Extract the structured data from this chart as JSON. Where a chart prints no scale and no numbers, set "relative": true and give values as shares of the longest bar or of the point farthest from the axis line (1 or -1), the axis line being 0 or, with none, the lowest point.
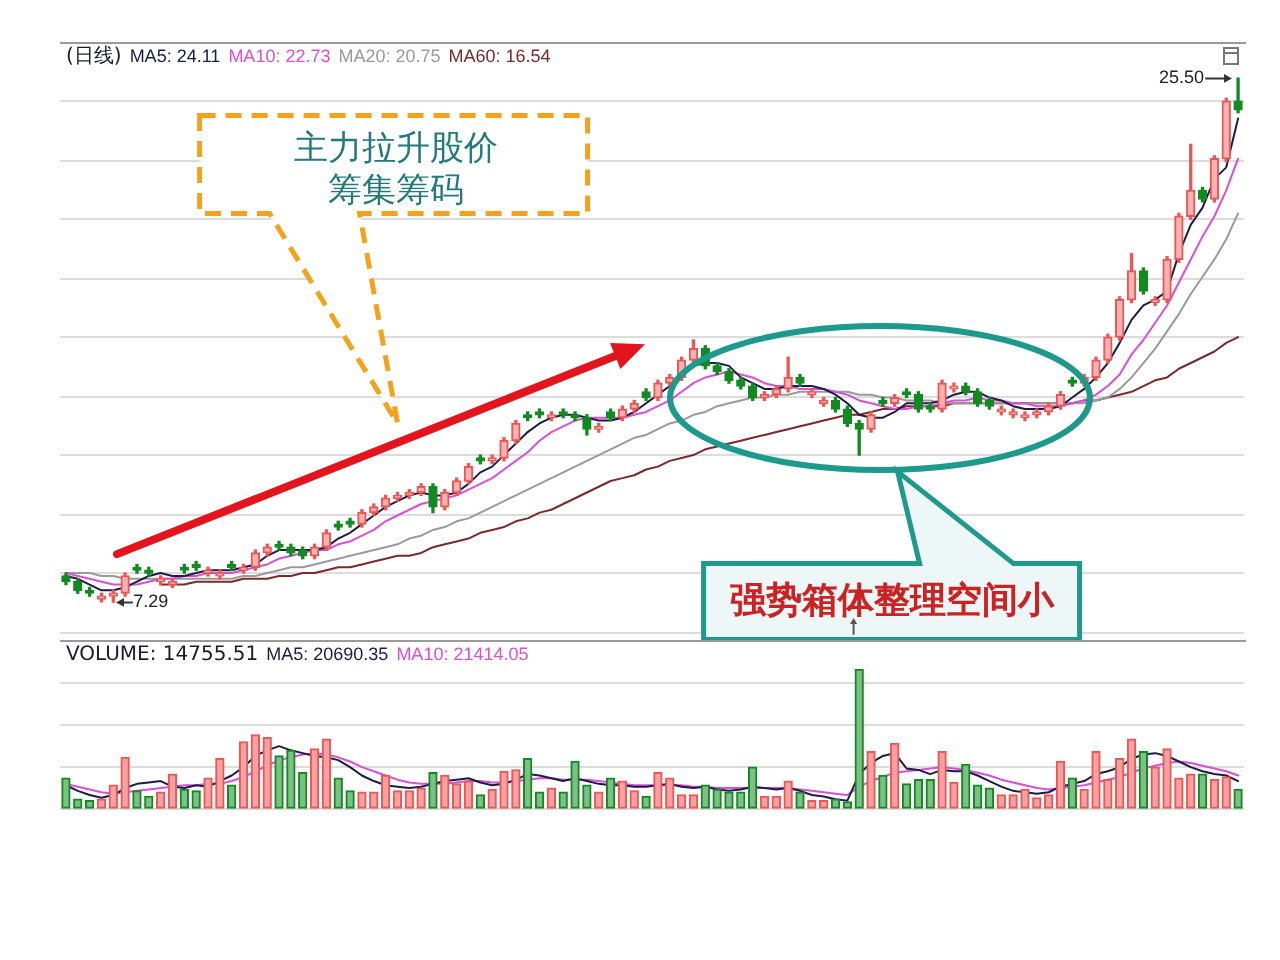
{
  "chart_data": [
    {
      "type": "candlestick",
      "title": "(日线)",
      "legend": "top left",
      "grid": "y",
      "tick_labels": false,
      "categories": [
        null,
        null,
        null,
        null,
        null,
        null,
        null,
        null,
        null,
        null,
        null,
        null,
        null,
        null,
        null,
        null,
        null,
        null,
        null,
        null,
        null,
        null,
        null,
        null,
        null,
        null,
        null,
        null,
        null,
        null,
        null,
        null,
        null,
        null,
        null,
        null,
        null,
        null,
        null,
        null,
        null,
        null,
        null,
        null,
        null,
        null,
        null,
        null,
        null,
        null,
        null,
        null,
        null,
        null,
        null,
        null,
        null,
        null,
        null,
        null,
        null,
        null,
        null,
        null,
        null,
        null,
        null,
        null,
        null,
        null,
        null,
        null,
        null,
        null,
        null,
        null,
        null,
        null,
        null,
        null,
        null,
        null,
        null,
        null,
        null,
        null,
        null,
        null,
        null,
        null,
        null,
        null,
        null,
        null,
        null,
        null,
        null,
        null,
        null,
        null
      ],
      "ohlc": [
        [
          8.2,
          8.3,
          7.9,
          8.0
        ],
        [
          8.0,
          8.1,
          7.6,
          7.7
        ],
        [
          7.7,
          7.8,
          7.5,
          7.6
        ],
        [
          7.4,
          7.6,
          7.3,
          7.5
        ],
        [
          7.5,
          7.7,
          7.29,
          7.6
        ],
        [
          7.6,
          8.3,
          7.5,
          8.2
        ],
        [
          8.5,
          8.6,
          8.3,
          8.4
        ],
        [
          8.4,
          8.5,
          8.2,
          8.3
        ],
        [
          8.0,
          8.2,
          7.9,
          8.1
        ],
        [
          7.9,
          8.1,
          7.8,
          8.0
        ],
        [
          8.5,
          8.6,
          8.3,
          8.4
        ],
        [
          8.6,
          8.7,
          8.4,
          8.5
        ],
        [
          8.3,
          8.5,
          8.2,
          8.4
        ],
        [
          8.2,
          8.4,
          8.1,
          8.3
        ],
        [
          8.6,
          8.7,
          8.4,
          8.5
        ],
        [
          8.4,
          8.6,
          8.3,
          8.5
        ],
        [
          8.5,
          9.1,
          8.4,
          9.0
        ],
        [
          9.0,
          9.3,
          8.9,
          9.2
        ],
        [
          9.3,
          9.4,
          9.1,
          9.2
        ],
        [
          9.2,
          9.3,
          8.9,
          9.0
        ],
        [
          9.1,
          9.2,
          8.8,
          8.9
        ],
        [
          8.9,
          9.3,
          8.8,
          9.2
        ],
        [
          9.2,
          9.8,
          9.1,
          9.7
        ],
        [
          10.0,
          10.1,
          9.8,
          9.9
        ],
        [
          10.1,
          10.2,
          9.9,
          10.0
        ],
        [
          10.0,
          10.5,
          9.9,
          10.4
        ],
        [
          10.4,
          10.7,
          10.3,
          10.6
        ],
        [
          10.6,
          11.0,
          10.5,
          10.9
        ],
        [
          10.9,
          11.1,
          10.8,
          11.0
        ],
        [
          11.0,
          11.2,
          10.9,
          11.1
        ],
        [
          11.1,
          11.4,
          11.0,
          11.3
        ],
        [
          11.3,
          11.4,
          10.4,
          10.6
        ],
        [
          10.6,
          11.2,
          10.5,
          11.1
        ],
        [
          11.1,
          11.6,
          11.0,
          11.5
        ],
        [
          11.5,
          12.1,
          11.4,
          12.0
        ],
        [
          12.3,
          12.4,
          12.1,
          12.2
        ],
        [
          12.2,
          12.4,
          12.1,
          12.3
        ],
        [
          12.3,
          13.0,
          12.2,
          12.9
        ],
        [
          12.9,
          13.6,
          12.8,
          13.5
        ],
        [
          13.8,
          13.9,
          13.6,
          13.7
        ],
        [
          13.9,
          14.0,
          13.7,
          13.8
        ],
        [
          13.7,
          13.9,
          13.6,
          13.8
        ],
        [
          13.9,
          14.0,
          13.7,
          13.8
        ],
        [
          13.8,
          13.9,
          13.6,
          13.7
        ],
        [
          13.7,
          13.8,
          13.1,
          13.3
        ],
        [
          13.3,
          13.5,
          13.2,
          13.4
        ],
        [
          13.9,
          14.0,
          13.6,
          13.7
        ],
        [
          13.7,
          14.1,
          13.6,
          14.0
        ],
        [
          14.0,
          14.3,
          13.9,
          14.2
        ],
        [
          14.6,
          14.7,
          14.3,
          14.4
        ],
        [
          14.4,
          15.0,
          14.3,
          14.9
        ],
        [
          14.9,
          15.2,
          14.8,
          15.1
        ],
        [
          15.1,
          15.8,
          15.0,
          15.7
        ],
        [
          15.7,
          16.4,
          15.6,
          16.1
        ],
        [
          16.1,
          16.2,
          15.4,
          15.5
        ],
        [
          15.5,
          15.6,
          15.2,
          15.3
        ],
        [
          15.3,
          15.4,
          14.9,
          15.0
        ],
        [
          15.0,
          15.1,
          14.7,
          14.8
        ],
        [
          14.8,
          14.9,
          14.3,
          14.4
        ],
        [
          14.4,
          14.6,
          14.3,
          14.5
        ],
        [
          14.5,
          14.8,
          14.4,
          14.7
        ],
        [
          14.7,
          15.8,
          14.6,
          15.1
        ],
        [
          15.1,
          15.2,
          14.8,
          14.9
        ],
        [
          14.5,
          14.7,
          14.4,
          14.6
        ],
        [
          14.2,
          14.4,
          14.1,
          14.3
        ],
        [
          14.3,
          14.4,
          13.9,
          14.0
        ],
        [
          14.0,
          14.1,
          13.4,
          13.5
        ],
        [
          13.5,
          13.6,
          12.4,
          13.3
        ],
        [
          13.3,
          13.9,
          13.2,
          13.8
        ],
        [
          14.3,
          14.4,
          14.1,
          14.2
        ],
        [
          14.2,
          14.5,
          14.1,
          14.4
        ],
        [
          14.6,
          14.7,
          14.4,
          14.5
        ],
        [
          14.5,
          14.6,
          13.9,
          14.0
        ],
        [
          14.1,
          14.2,
          13.9,
          14.0
        ],
        [
          14.0,
          15.0,
          13.9,
          14.9
        ],
        [
          14.7,
          14.9,
          14.6,
          14.8
        ],
        [
          14.8,
          14.9,
          14.5,
          14.6
        ],
        [
          14.6,
          14.7,
          14.1,
          14.2
        ],
        [
          14.3,
          14.4,
          14.0,
          14.1
        ],
        [
          13.9,
          14.1,
          13.8,
          14.0
        ],
        [
          13.8,
          14.0,
          13.7,
          13.9
        ],
        [
          13.7,
          13.9,
          13.6,
          13.8
        ],
        [
          13.8,
          14.0,
          13.7,
          13.9
        ],
        [
          13.9,
          14.2,
          13.8,
          14.1
        ],
        [
          14.1,
          14.6,
          14.0,
          14.5
        ],
        [
          15.0,
          15.1,
          14.8,
          14.9
        ],
        [
          14.9,
          15.2,
          14.8,
          15.1
        ],
        [
          15.1,
          15.8,
          15.0,
          15.7
        ],
        [
          15.7,
          16.6,
          15.6,
          16.5
        ],
        [
          16.5,
          17.9,
          16.4,
          17.8
        ],
        [
          17.8,
          19.4,
          17.7,
          18.8
        ],
        [
          18.8,
          18.9,
          18.0,
          18.1
        ],
        [
          17.7,
          17.9,
          17.6,
          17.8
        ],
        [
          17.8,
          19.3,
          17.7,
          19.2
        ],
        [
          19.2,
          20.8,
          19.1,
          20.7
        ],
        [
          20.7,
          23.2,
          20.6,
          21.6
        ],
        [
          21.6,
          21.7,
          21.2,
          21.3
        ],
        [
          21.3,
          22.8,
          21.2,
          22.7
        ],
        [
          22.7,
          24.8,
          22.6,
          24.7
        ],
        [
          24.7,
          25.5,
          24.3,
          24.4
        ]
      ],
      "colors": [
        "#128a22",
        "#128a22",
        "#128a22",
        "#ee5555",
        "#ee5555",
        "#ee5555",
        "#128a22",
        "#128a22",
        "#ee5555",
        "#ee5555",
        "#128a22",
        "#128a22",
        "#ee5555",
        "#ee5555",
        "#128a22",
        "#ee5555",
        "#ee5555",
        "#ee5555",
        "#128a22",
        "#128a22",
        "#128a22",
        "#ee5555",
        "#ee5555",
        "#128a22",
        "#128a22",
        "#ee5555",
        "#ee5555",
        "#ee5555",
        "#ee5555",
        "#ee5555",
        "#ee5555",
        "#128a22",
        "#ee5555",
        "#ee5555",
        "#ee5555",
        "#128a22",
        "#ee5555",
        "#ee5555",
        "#ee5555",
        "#128a22",
        "#128a22",
        "#ee5555",
        "#128a22",
        "#128a22",
        "#128a22",
        "#ee5555",
        "#128a22",
        "#ee5555",
        "#ee5555",
        "#128a22",
        "#ee5555",
        "#ee5555",
        "#ee5555",
        "#ee5555",
        "#128a22",
        "#128a22",
        "#128a22",
        "#128a22",
        "#128a22",
        "#ee5555",
        "#ee5555",
        "#ee5555",
        "#128a22",
        "#ee5555",
        "#ee5555",
        "#128a22",
        "#128a22",
        "#128a22",
        "#ee5555",
        "#128a22",
        "#ee5555",
        "#128a22",
        "#128a22",
        "#128a22",
        "#ee5555",
        "#ee5555",
        "#128a22",
        "#128a22",
        "#128a22",
        "#ee5555",
        "#ee5555",
        "#ee5555",
        "#ee5555",
        "#ee5555",
        "#ee5555",
        "#128a22",
        "#ee5555",
        "#ee5555",
        "#ee5555",
        "#ee5555",
        "#ee5555",
        "#128a22",
        "#ee5555",
        "#ee5555",
        "#ee5555",
        "#ee5555",
        "#128a22",
        "#ee5555",
        "#ee5555",
        "#128a22"
      ],
      "series": [
        {
          "type": "line",
          "name": "MA5: 24.11",
          "color": "#1c1c44",
          "values": [
            8.2,
            8.1,
            7.9,
            7.7,
            7.7,
            7.8,
            8.0,
            8.2,
            8.3,
            8.2,
            8.2,
            8.3,
            8.4,
            8.4,
            8.4,
            8.5,
            8.6,
            8.9,
            9.1,
            9.1,
            9.1,
            9.1,
            9.2,
            9.5,
            9.7,
            10.0,
            10.3,
            10.6,
            10.8,
            11.0,
            11.1,
            11.0,
            11.0,
            11.1,
            11.4,
            11.8,
            12.0,
            12.4,
            12.8,
            13.2,
            13.5,
            13.7,
            13.8,
            13.8,
            13.7,
            13.6,
            13.6,
            13.7,
            13.9,
            14.2,
            14.5,
            14.8,
            15.1,
            15.5,
            15.6,
            15.6,
            15.5,
            15.1,
            14.9,
            14.7,
            14.7,
            14.8,
            14.8,
            14.8,
            14.7,
            14.5,
            14.2,
            13.8,
            13.7,
            13.7,
            13.9,
            14.2,
            14.2,
            14.2,
            14.3,
            14.5,
            14.6,
            14.6,
            14.4,
            14.3,
            14.1,
            14.0,
            14.0,
            14.0,
            14.1,
            14.4,
            14.7,
            15.1,
            15.6,
            16.3,
            17.1,
            17.6,
            17.8,
            18.1,
            19.4,
            20.4,
            21.0,
            22.0,
            22.4,
            24.1
          ]
        },
        {
          "type": "line",
          "name": "MA10: 22.73",
          "color": "#d84fd8",
          "values": [
            8.3,
            8.2,
            8.1,
            8.0,
            7.9,
            7.9,
            7.9,
            8.0,
            8.1,
            8.1,
            8.2,
            8.2,
            8.3,
            8.3,
            8.3,
            8.4,
            8.5,
            8.6,
            8.8,
            8.9,
            9.0,
            9.1,
            9.1,
            9.3,
            9.4,
            9.6,
            9.8,
            10.1,
            10.3,
            10.5,
            10.7,
            10.8,
            10.9,
            11.0,
            11.2,
            11.4,
            11.6,
            11.9,
            12.2,
            12.5,
            12.9,
            13.2,
            13.4,
            13.6,
            13.7,
            13.7,
            13.7,
            13.7,
            13.8,
            13.9,
            14.1,
            14.3,
            14.6,
            14.9,
            15.1,
            15.2,
            15.3,
            15.2,
            15.1,
            14.9,
            14.8,
            14.8,
            14.7,
            14.7,
            14.7,
            14.6,
            14.5,
            14.3,
            14.2,
            14.1,
            14.0,
            14.0,
            14.1,
            14.1,
            14.2,
            14.3,
            14.3,
            14.4,
            14.3,
            14.3,
            14.2,
            14.2,
            14.1,
            14.1,
            14.1,
            14.2,
            14.3,
            14.5,
            14.8,
            15.2,
            15.9,
            16.4,
            17.0,
            17.6,
            18.4,
            19.2,
            20.0,
            20.7,
            21.6,
            22.7
          ]
        },
        {
          "type": "line",
          "name": "MA20: 20.75",
          "color": "#9a9a9a",
          "values": [
            8.3,
            8.3,
            8.3,
            8.2,
            8.2,
            8.1,
            8.1,
            8.1,
            8.1,
            8.1,
            8.1,
            8.1,
            8.1,
            8.1,
            8.1,
            8.2,
            8.2,
            8.3,
            8.4,
            8.5,
            8.5,
            8.6,
            8.7,
            8.8,
            8.9,
            9.0,
            9.1,
            9.2,
            9.3,
            9.5,
            9.6,
            9.8,
            9.9,
            10.1,
            10.2,
            10.4,
            10.6,
            10.8,
            11.0,
            11.2,
            11.4,
            11.6,
            11.8,
            12.0,
            12.2,
            12.4,
            12.6,
            12.8,
            13.0,
            13.1,
            13.3,
            13.5,
            13.6,
            13.8,
            13.9,
            14.1,
            14.2,
            14.3,
            14.4,
            14.4,
            14.5,
            14.5,
            14.6,
            14.6,
            14.6,
            14.6,
            14.6,
            14.5,
            14.5,
            14.4,
            14.4,
            14.3,
            14.3,
            14.3,
            14.2,
            14.2,
            14.2,
            14.2,
            14.2,
            14.2,
            14.2,
            14.2,
            14.2,
            14.2,
            14.2,
            14.2,
            14.2,
            14.3,
            14.4,
            14.7,
            15.1,
            15.6,
            16.1,
            16.7,
            17.3,
            18.0,
            18.6,
            19.2,
            19.9,
            20.8
          ]
        },
        {
          "type": "line",
          "name": "MA60: 16.54",
          "color": "#7a2a2a",
          "values": [
            null,
            null,
            null,
            null,
            null,
            null,
            null,
            null,
            7.9,
            7.9,
            7.9,
            8.0,
            8.0,
            8.0,
            8.0,
            8.1,
            8.1,
            8.1,
            8.2,
            8.2,
            8.3,
            8.3,
            8.4,
            8.5,
            8.5,
            8.6,
            8.7,
            8.8,
            8.9,
            8.9,
            9.0,
            9.2,
            9.3,
            9.4,
            9.5,
            9.7,
            9.8,
            9.9,
            10.1,
            10.2,
            10.4,
            10.5,
            10.7,
            10.9,
            11.1,
            11.3,
            11.5,
            11.6,
            11.7,
            11.9,
            12.0,
            12.2,
            12.3,
            12.4,
            12.6,
            12.7,
            12.8,
            12.9,
            13.0,
            13.1,
            13.2,
            13.3,
            13.4,
            13.5,
            13.6,
            13.7,
            13.8,
            13.8,
            13.9,
            14.0,
            14.0,
            14.1,
            14.1,
            14.1,
            14.1,
            14.2,
            14.2,
            14.2,
            14.2,
            14.2,
            14.2,
            14.2,
            14.2,
            14.2,
            14.2,
            14.2,
            14.3,
            14.3,
            14.4,
            14.5,
            14.6,
            14.8,
            15.0,
            15.1,
            15.4,
            15.6,
            15.8,
            16.0,
            16.3,
            16.5
          ]
        }
      ],
      "annotations": [
        "主力拉升股价",
        "筹集筹码",
        "强势箱体整理空间小",
        "25.50",
        "7.29"
      ]
    },
    {
      "type": "bar",
      "title": "VOLUME: 14755.51",
      "legend": "top left",
      "grid": "y",
      "tick_labels": false,
      "relative": true,
      "categories": [
        null,
        null,
        null,
        null,
        null,
        null,
        null,
        null,
        null,
        null,
        null,
        null,
        null,
        null,
        null,
        null,
        null,
        null,
        null,
        null,
        null,
        null,
        null,
        null,
        null,
        null,
        null,
        null,
        null,
        null,
        null,
        null,
        null,
        null,
        null,
        null,
        null,
        null,
        null,
        null,
        null,
        null,
        null,
        null,
        null,
        null,
        null,
        null,
        null,
        null,
        null,
        null,
        null,
        null,
        null,
        null,
        null,
        null,
        null,
        null,
        null,
        null,
        null,
        null,
        null,
        null,
        null,
        null,
        null,
        null,
        null,
        null,
        null,
        null,
        null,
        null,
        null,
        null,
        null,
        null,
        null,
        null,
        null,
        null,
        null,
        null,
        null,
        null,
        null,
        null,
        null,
        null,
        null,
        null,
        null,
        null,
        null,
        null,
        null,
        null
      ],
      "series": [
        {
          "type": "bar",
          "colors": [
            "#128a22",
            "#128a22",
            "#128a22",
            "#ee5555",
            "#ee5555",
            "#ee5555",
            "#128a22",
            "#128a22",
            "#ee5555",
            "#ee5555",
            "#128a22",
            "#128a22",
            "#ee5555",
            "#ee5555",
            "#128a22",
            "#ee5555",
            "#ee5555",
            "#ee5555",
            "#128a22",
            "#128a22",
            "#128a22",
            "#ee5555",
            "#ee5555",
            "#128a22",
            "#128a22",
            "#ee5555",
            "#ee5555",
            "#ee5555",
            "#ee5555",
            "#ee5555",
            "#ee5555",
            "#128a22",
            "#ee5555",
            "#ee5555",
            "#ee5555",
            "#128a22",
            "#ee5555",
            "#ee5555",
            "#ee5555",
            "#128a22",
            "#128a22",
            "#ee5555",
            "#128a22",
            "#128a22",
            "#128a22",
            "#ee5555",
            "#128a22",
            "#ee5555",
            "#ee5555",
            "#128a22",
            "#ee5555",
            "#ee5555",
            "#ee5555",
            "#ee5555",
            "#128a22",
            "#128a22",
            "#128a22",
            "#128a22",
            "#128a22",
            "#ee5555",
            "#ee5555",
            "#ee5555",
            "#128a22",
            "#ee5555",
            "#ee5555",
            "#128a22",
            "#128a22",
            "#128a22",
            "#ee5555",
            "#128a22",
            "#ee5555",
            "#128a22",
            "#128a22",
            "#128a22",
            "#ee5555",
            "#ee5555",
            "#128a22",
            "#128a22",
            "#128a22",
            "#ee5555",
            "#ee5555",
            "#ee5555",
            "#ee5555",
            "#ee5555",
            "#ee5555",
            "#128a22",
            "#ee5555",
            "#ee5555",
            "#ee5555",
            "#ee5555",
            "#ee5555",
            "#128a22",
            "#ee5555",
            "#ee5555",
            "#ee5555",
            "#ee5555",
            "#128a22",
            "#ee5555",
            "#ee5555",
            "#128a22"
          ],
          "values": [
            0.22,
            0.07,
            0.06,
            0.07,
            0.17,
            0.37,
            0.13,
            0.09,
            0.12,
            0.25,
            0.14,
            0.13,
            0.22,
            0.36,
            0.17,
            0.48,
            0.53,
            0.51,
            0.38,
            0.42,
            0.26,
            0.43,
            0.5,
            0.22,
            0.13,
            0.12,
            0.12,
            0.24,
            0.13,
            0.13,
            0.15,
            0.26,
            0.24,
            0.18,
            0.2,
            0.1,
            0.14,
            0.27,
            0.28,
            0.36,
            0.12,
            0.15,
            0.12,
            0.34,
            0.17,
            0.12,
            0.22,
            0.2,
            0.13,
            0.09,
            0.26,
            0.22,
            0.1,
            0.1,
            0.17,
            0.14,
            0.12,
            0.12,
            0.3,
            0.09,
            0.09,
            0.2,
            0.12,
            0.06,
            0.06,
            0.07,
            0.05,
            1,
            0.41,
            0.24,
            0.47,
            0.18,
            0.21,
            0.21,
            0.41,
            0.19,
            0.32,
            0.17,
            0.15,
            0.1,
            0.1,
            0.14,
            0.08,
            0.1,
            0.34,
            0.22,
            0.14,
            0.41,
            0.21,
            0.36,
            0.5,
            0.41,
            0.3,
            0.43,
            0.22,
            0.25,
            0.25,
            0.21,
            0.23,
            0.14
          ]
        },
        {
          "type": "line",
          "name": "MA5: 20690.35",
          "color": "#1c1c44",
          "values": [
            0.17,
            0.13,
            0.1,
            0.08,
            0.1,
            0.15,
            0.18,
            0.19,
            0.2,
            0.16,
            0.15,
            0.17,
            0.16,
            0.2,
            0.24,
            0.3,
            0.38,
            0.42,
            0.45,
            0.42,
            0.4,
            0.38,
            0.37,
            0.35,
            0.3,
            0.24,
            0.2,
            0.17,
            0.16,
            0.15,
            0.16,
            0.18,
            0.2,
            0.21,
            0.22,
            0.19,
            0.17,
            0.18,
            0.21,
            0.25,
            0.24,
            0.22,
            0.2,
            0.22,
            0.2,
            0.18,
            0.17,
            0.17,
            0.16,
            0.16,
            0.17,
            0.18,
            0.16,
            0.15,
            0.16,
            0.14,
            0.13,
            0.14,
            0.16,
            0.15,
            0.14,
            0.15,
            0.13,
            0.1,
            0.09,
            0.07,
            0.06,
            0.25,
            0.33,
            0.38,
            0.4,
            0.29,
            0.28,
            0.25,
            0.28,
            0.27,
            0.27,
            0.24,
            0.2,
            0.16,
            0.13,
            0.12,
            0.11,
            0.12,
            0.16,
            0.18,
            0.2,
            0.25,
            0.27,
            0.3,
            0.36,
            0.39,
            0.4,
            0.38,
            0.34,
            0.3,
            0.27,
            0.25,
            0.24,
            0.2
          ]
        },
        {
          "type": "line",
          "name": "MA10: 21414.05",
          "color": "#d84fd8",
          "values": [
            0.18,
            0.16,
            0.14,
            0.12,
            0.11,
            0.12,
            0.13,
            0.14,
            0.15,
            0.16,
            0.17,
            0.17,
            0.18,
            0.18,
            0.2,
            0.23,
            0.27,
            0.31,
            0.35,
            0.37,
            0.39,
            0.4,
            0.39,
            0.37,
            0.34,
            0.3,
            0.27,
            0.24,
            0.21,
            0.19,
            0.18,
            0.18,
            0.18,
            0.19,
            0.2,
            0.2,
            0.19,
            0.19,
            0.2,
            0.21,
            0.22,
            0.22,
            0.21,
            0.21,
            0.21,
            0.2,
            0.19,
            0.18,
            0.17,
            0.17,
            0.17,
            0.17,
            0.17,
            0.16,
            0.16,
            0.15,
            0.15,
            0.15,
            0.15,
            0.15,
            0.15,
            0.15,
            0.14,
            0.13,
            0.12,
            0.11,
            0.1,
            0.16,
            0.2,
            0.23,
            0.26,
            0.27,
            0.28,
            0.29,
            0.3,
            0.29,
            0.28,
            0.26,
            0.24,
            0.21,
            0.19,
            0.17,
            0.15,
            0.14,
            0.15,
            0.16,
            0.17,
            0.19,
            0.21,
            0.23,
            0.26,
            0.29,
            0.31,
            0.33,
            0.34,
            0.33,
            0.31,
            0.29,
            0.27,
            0.24
          ]
        }
      ]
    }
  ]
}
